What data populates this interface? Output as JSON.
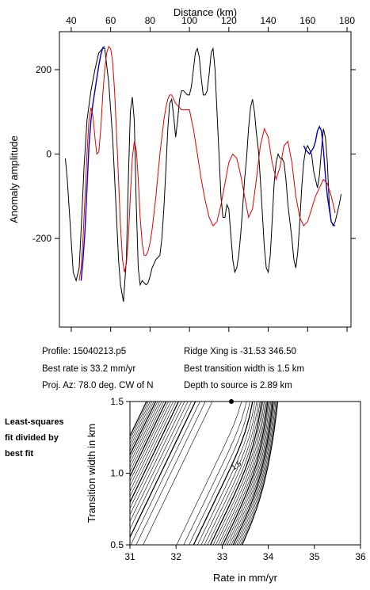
{
  "info": {
    "profile": "Profile: 15040213.p5",
    "ridge": "Ridge Xing is -31.53 346.50",
    "best_rate": "Best rate is 33.2 mm/yr",
    "best_width": "Best transition width is 1.5 km",
    "proj": "Proj. Az: 78.0 deg. CW of N",
    "depth": "Depth to source is   2.89 km"
  },
  "side_note": [
    "Least-squares",
    "fit divided by",
    "best fit"
  ],
  "chart_data": [
    {
      "type": "line",
      "xlabel": "Distance (km)",
      "ylabel": "Anomaly amplitude",
      "xlim": [
        34,
        182
      ],
      "ylim": [
        -410,
        290
      ],
      "xticks": [
        40,
        60,
        80,
        100,
        120,
        140,
        160,
        180
      ],
      "yticks": [
        200,
        0,
        -200
      ],
      "colors": {
        "observed": "#000000",
        "fit_window": "#0000cc",
        "model": "#e00000"
      },
      "series": [
        {
          "role": "observed",
          "x": [
            37,
            38,
            39.5,
            41,
            42.5,
            44,
            45,
            46.5,
            48,
            50,
            52,
            54,
            56,
            57,
            59,
            61,
            63,
            64,
            65,
            66.5,
            68,
            69,
            70,
            71,
            72,
            73,
            74,
            75,
            76,
            77,
            78,
            79,
            80,
            81,
            82,
            83,
            84,
            85,
            86,
            87,
            88,
            89,
            90,
            91,
            92,
            93,
            94,
            95,
            96,
            97,
            98,
            99,
            100,
            101,
            102,
            103,
            104,
            105,
            106,
            107,
            108,
            109,
            110,
            111,
            112,
            113,
            114,
            115,
            116,
            117,
            118,
            119,
            120,
            121,
            122,
            123,
            124,
            125,
            126,
            127,
            128,
            129,
            130,
            131,
            132,
            133,
            134,
            135,
            136,
            137,
            138,
            139,
            140,
            141,
            142,
            143,
            144,
            145,
            146,
            147,
            148,
            149,
            150,
            151,
            152,
            153,
            154,
            155,
            156,
            157,
            158,
            159,
            160,
            161,
            162,
            163,
            164,
            165,
            166,
            167,
            168,
            169,
            170,
            171,
            172,
            173,
            174,
            175,
            176,
            177
          ],
          "y": [
            -10,
            -60,
            -170,
            -280,
            -300,
            -270,
            -180,
            -30,
            80,
            150,
            200,
            240,
            250,
            250,
            170,
            40,
            -150,
            -250,
            -310,
            -350,
            -250,
            -60,
            100,
            135,
            80,
            -120,
            -270,
            -310,
            -300,
            -305,
            -310,
            -305,
            -290,
            -270,
            -260,
            -250,
            -245,
            -240,
            -200,
            -130,
            -40,
            60,
            120,
            130,
            90,
            40,
            80,
            130,
            150,
            150,
            145,
            140,
            140,
            160,
            200,
            240,
            250,
            230,
            180,
            140,
            140,
            150,
            190,
            240,
            250,
            200,
            100,
            0,
            -100,
            -150,
            -150,
            -120,
            -130,
            -190,
            -250,
            -280,
            -270,
            -240,
            -190,
            -130,
            -60,
            -10,
            60,
            110,
            130,
            100,
            50,
            10,
            -60,
            -140,
            -220,
            -270,
            -280,
            -240,
            -160,
            -70,
            -20,
            0,
            -10,
            -10,
            -20,
            -60,
            -120,
            -160,
            -200,
            -250,
            -270,
            -230,
            -160,
            -80,
            -20,
            10,
            20,
            10,
            0,
            -40,
            -60,
            -80,
            -50,
            10,
            60,
            40,
            -20,
            -120,
            -160,
            -170,
            -160,
            -140,
            -120,
            -95
          ]
        },
        {
          "role": "fit_window",
          "x": [
            45,
            46,
            47,
            48,
            49,
            50,
            51,
            52,
            53,
            54,
            55,
            56,
            57,
            158,
            159,
            160,
            161,
            162,
            163,
            164,
            165,
            166,
            167,
            168,
            169,
            170,
            171,
            172,
            173,
            174
          ],
          "y": [
            -300,
            -250,
            -180,
            -80,
            20,
            80,
            120,
            150,
            180,
            210,
            235,
            252,
            255,
            20,
            10,
            5,
            0,
            8,
            15,
            30,
            55,
            65,
            55,
            10,
            -50,
            -100,
            -130,
            -160,
            -168,
            -170
          ]
        },
        {
          "role": "model",
          "x": [
            44,
            45,
            46,
            47,
            48,
            49,
            50,
            51,
            52,
            53,
            54,
            55,
            56,
            57,
            58,
            59,
            60,
            61,
            62,
            63,
            64,
            65,
            66,
            67,
            68,
            69,
            70,
            71,
            72,
            73,
            74,
            75,
            76,
            77,
            78,
            79,
            80,
            81,
            82,
            83,
            84,
            85,
            86,
            87,
            88,
            89,
            90,
            91,
            92,
            93,
            94,
            95,
            96,
            97,
            98,
            99,
            100,
            102,
            104,
            106,
            108,
            110,
            112,
            114,
            116,
            118,
            120,
            122,
            124,
            126,
            128,
            130,
            132,
            134,
            136,
            138,
            140,
            142,
            144,
            146,
            148,
            150,
            152,
            154,
            156,
            158,
            160,
            162,
            164,
            166,
            168,
            170,
            172,
            174
          ],
          "y": [
            -300,
            -270,
            -200,
            -100,
            0,
            80,
            110,
            90,
            40,
            0,
            5,
            60,
            140,
            200,
            240,
            255,
            250,
            220,
            150,
            50,
            -60,
            -170,
            -250,
            -280,
            -260,
            -200,
            -100,
            -10,
            30,
            10,
            -60,
            -150,
            -210,
            -240,
            -240,
            -230,
            -210,
            -180,
            -140,
            -100,
            -50,
            0,
            40,
            80,
            110,
            130,
            140,
            140,
            130,
            120,
            115,
            110,
            105,
            105,
            105,
            105,
            105,
            60,
            0,
            -60,
            -110,
            -150,
            -170,
            -160,
            -120,
            -70,
            -20,
            0,
            -10,
            -50,
            -100,
            -150,
            -130,
            -60,
            20,
            60,
            40,
            -20,
            -60,
            -30,
            20,
            30,
            -20,
            -100,
            -150,
            -170,
            -160,
            -130,
            -100,
            -80,
            -60,
            -70,
            -100,
            -140
          ]
        }
      ]
    },
    {
      "type": "contour",
      "xlabel": "Rate in mm/yr",
      "ylabel": "Transition width in km",
      "xlim": [
        31,
        36
      ],
      "ylim": [
        0.5,
        1.5
      ],
      "xticks": [
        31,
        32,
        33,
        34,
        35,
        36
      ],
      "yticks": [
        0.5,
        1.0,
        1.5
      ],
      "contour_label": "1.5",
      "best_fit": {
        "rate": 33.2,
        "width": 1.5
      }
    }
  ]
}
